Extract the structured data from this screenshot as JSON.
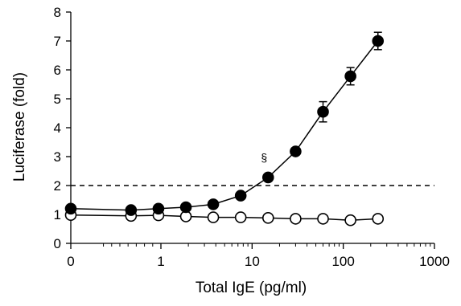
{
  "chart_data": {
    "type": "line",
    "xlabel": "Total IgE (pg/ml)",
    "ylabel": "Luciferase (fold)",
    "x_scale": "log",
    "xlim": [
      0,
      1000
    ],
    "ylim": [
      0,
      8
    ],
    "x_tick_labels": [
      "0",
      "1",
      "10",
      "100",
      "1000"
    ],
    "y_tick_labels": [
      "0",
      "1",
      "2",
      "3",
      "4",
      "5",
      "6",
      "7",
      "8"
    ],
    "grid": false,
    "series": [
      {
        "marker": "filled-circle",
        "color": "#000000",
        "x": [
          0,
          0.47,
          0.94,
          1.88,
          3.75,
          7.5,
          15,
          30,
          60,
          120,
          240
        ],
        "y": [
          1.2,
          1.15,
          1.2,
          1.25,
          1.35,
          1.65,
          2.28,
          3.18,
          4.55,
          5.78,
          7.0
        ],
        "error": [
          0,
          0,
          0,
          0,
          0,
          0,
          0.08,
          0.12,
          0.35,
          0.3,
          0.3
        ]
      },
      {
        "marker": "open-circle",
        "color": "#000000",
        "x": [
          0,
          0.47,
          0.94,
          1.88,
          3.75,
          7.5,
          15,
          30,
          60,
          120,
          240
        ],
        "y": [
          0.98,
          0.95,
          0.97,
          0.93,
          0.9,
          0.9,
          0.88,
          0.85,
          0.85,
          0.8,
          0.85
        ]
      }
    ],
    "threshold": {
      "y": 2,
      "style": "dashed"
    },
    "annotations": [
      {
        "text": "§",
        "x": 15,
        "y": 2.55
      }
    ]
  }
}
